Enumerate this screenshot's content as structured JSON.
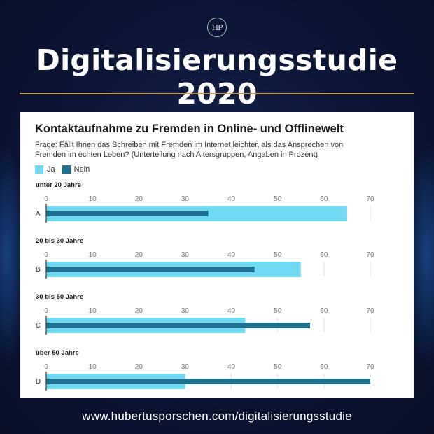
{
  "header": {
    "logo_text": "HP",
    "title": "Digitalisierungsstudie 2020"
  },
  "footer": {
    "url": "www.hubertusporschen.com/digitalisierungsstudie"
  },
  "colors": {
    "ja": "#72d9f2",
    "nein": "#1d7292",
    "gold_rule": "#c39a5e"
  },
  "chart_data": {
    "type": "bar",
    "orientation": "horizontal",
    "title": "Kontaktaufnahme zu Fremden in Online- und Offlinewelt",
    "subtitle": "Frage: Fällt Ihnen das Schreiben mit Fremden im Internet leichter, als das Ansprechen von Fremden im echten Leben? (Unterteilung nach Altersgruppen, Angaben in Prozent)",
    "legend": [
      "Ja",
      "Nein"
    ],
    "legend_position": "top-left",
    "xlim": [
      0,
      70
    ],
    "ticks": [
      0,
      10,
      20,
      30,
      40,
      50,
      60,
      70
    ],
    "grid": true,
    "groups": [
      {
        "label": "unter 20 Jahre",
        "category": "A",
        "ja": 65,
        "nein": 35
      },
      {
        "label": "20 bis 30 Jahre",
        "category": "B",
        "ja": 55,
        "nein": 45
      },
      {
        "label": "30 bis 50 Jahre",
        "category": "C",
        "ja": 43,
        "nein": 57
      },
      {
        "label": "über 50 Jahre",
        "category": "D",
        "ja": 30,
        "nein": 70
      }
    ]
  }
}
